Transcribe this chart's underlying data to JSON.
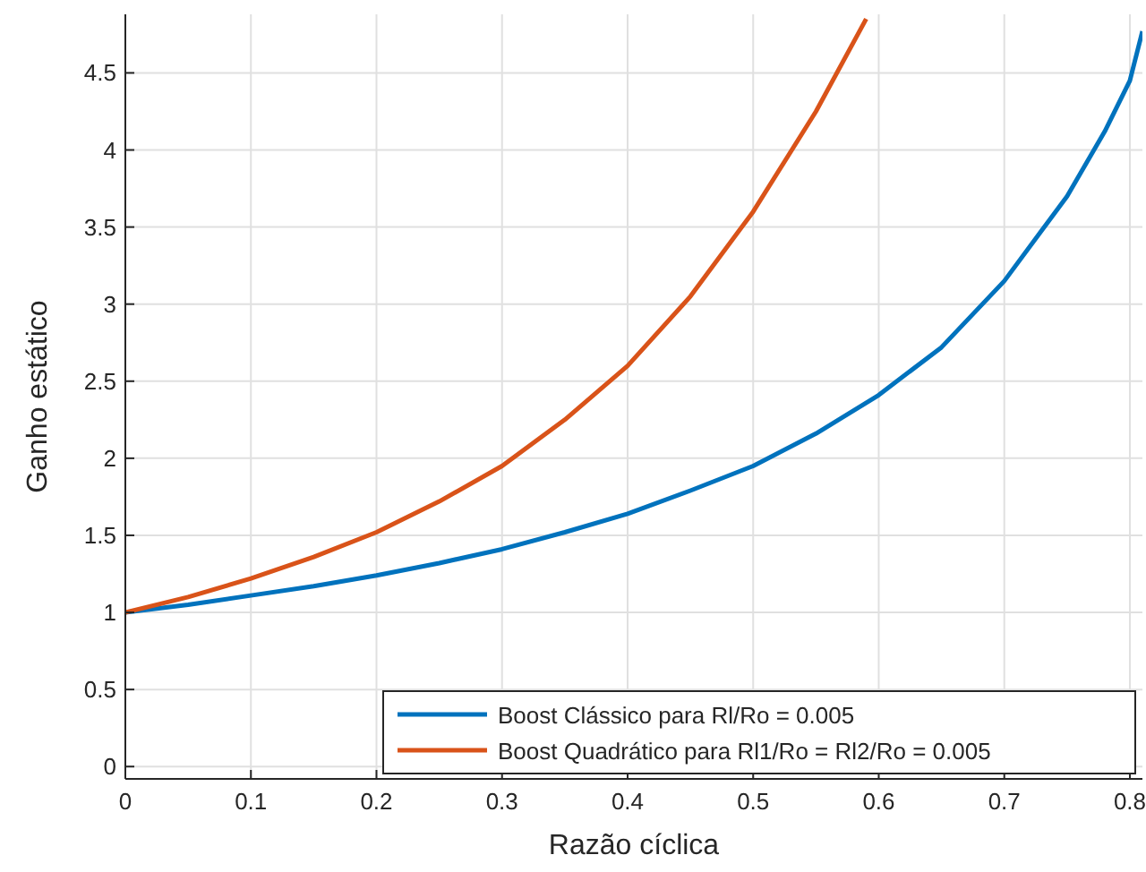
{
  "chart_data": {
    "type": "line",
    "xlabel": "Razão cíclica",
    "ylabel": "Ganho estático",
    "xlim": [
      0,
      0.81
    ],
    "ylim": [
      -0.08,
      4.88
    ],
    "xticks": [
      0,
      0.1,
      0.2,
      0.3,
      0.4,
      0.5,
      0.6,
      0.7,
      0.8
    ],
    "yticks": [
      0,
      0.5,
      1,
      1.5,
      2,
      2.5,
      3,
      3.5,
      4,
      4.5
    ],
    "grid": true,
    "legend": "bottom right",
    "line_style": "solid",
    "marker": "none",
    "series": [
      {
        "name": "Boost Clássico para Rl/Ro = 0.005",
        "color": "#0072bd",
        "x": [
          0,
          0.05,
          0.1,
          0.15,
          0.2,
          0.25,
          0.3,
          0.35,
          0.4,
          0.45,
          0.5,
          0.55,
          0.6,
          0.65,
          0.7,
          0.75,
          0.78,
          0.8,
          0.81
        ],
        "values": [
          1,
          1.05,
          1.11,
          1.17,
          1.24,
          1.32,
          1.41,
          1.52,
          1.64,
          1.79,
          1.95,
          2.16,
          2.41,
          2.72,
          3.15,
          3.7,
          4.12,
          4.45,
          4.77
        ]
      },
      {
        "name": "Boost Quadrático para Rl1/Ro = Rl2/Ro = 0.005",
        "color": "#d95319",
        "x": [
          0,
          0.05,
          0.1,
          0.15,
          0.2,
          0.25,
          0.3,
          0.35,
          0.4,
          0.45,
          0.5,
          0.55,
          0.59
        ],
        "values": [
          1,
          1.1,
          1.22,
          1.36,
          1.52,
          1.72,
          1.95,
          2.25,
          2.6,
          3.05,
          3.6,
          4.25,
          4.85
        ]
      }
    ]
  }
}
